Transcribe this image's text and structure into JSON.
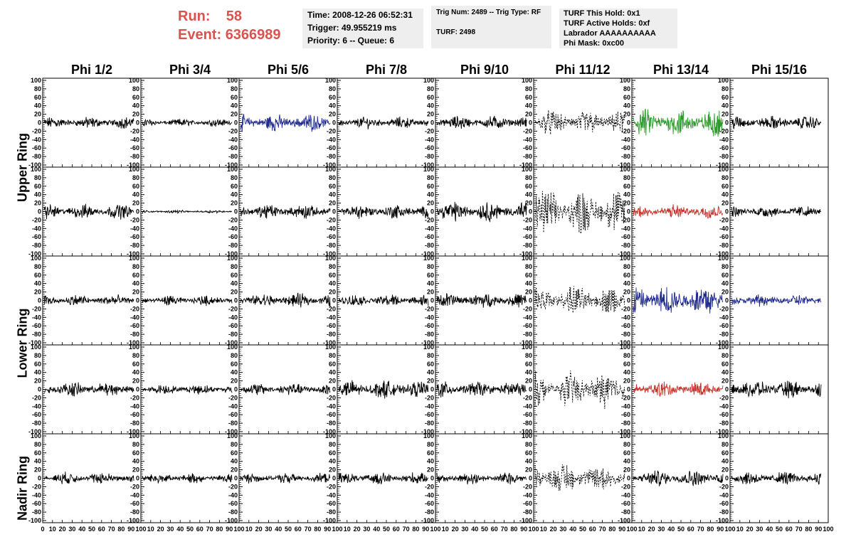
{
  "header": {
    "run_label": "Run:",
    "run_value": "58",
    "event_label": "Event:",
    "event_value": "6366989",
    "time": "Time: 2008-12-26 06:52:31",
    "trigger": "Trigger: 49.955219 ms",
    "priority": "Priority: 6 -- Queue: 6",
    "trig_num": "Trig Num: 2489 -- Trig Type: RF",
    "turf": "TURF: 2498",
    "turf_this_hold": "TURF This Hold: 0x1",
    "turf_active_holds": "TURF Active Holds: 0xf",
    "labrador": "Labrador AAAAAAAAAA",
    "phi_mask": "Phi Mask: 0xc00"
  },
  "ring_labels": {
    "upper": "Upper Ring",
    "lower": "Lower Ring",
    "nadir": "Nadir Ring"
  },
  "colors": {
    "black": "#000000",
    "blue": "#1f2a8c",
    "green": "#2a9a2a",
    "red": "#c8322c",
    "header_red": "#d9534f",
    "info_bg": "#eeeeee"
  },
  "chart_data": {
    "type": "line",
    "columns": [
      "Phi 1/2",
      "Phi 3/4",
      "Phi 5/6",
      "Phi 7/8",
      "Phi 9/10",
      "Phi 11/12",
      "Phi 13/14",
      "Phi 15/16"
    ],
    "y_ticks": [
      "100",
      "80",
      "60",
      "40",
      "20",
      "0",
      "-20",
      "-40",
      "-60",
      "-80",
      "-100"
    ],
    "x_ticks": [
      "0",
      "10",
      "20",
      "30",
      "40",
      "50",
      "60",
      "70",
      "80",
      "90",
      "100"
    ],
    "ylim": [
      -100,
      100
    ],
    "xlim": [
      0,
      100
    ],
    "rows": [
      {
        "cells": [
          {
            "color": "black",
            "amp": 12,
            "style": "solid"
          },
          {
            "color": "black",
            "amp": 8,
            "style": "solid"
          },
          {
            "color": "blue",
            "amp": 18,
            "style": "solid"
          },
          {
            "color": "black",
            "amp": 12,
            "style": "solid"
          },
          {
            "color": "black",
            "amp": 14,
            "style": "solid"
          },
          {
            "color": "black",
            "amp": 25,
            "style": "dashed"
          },
          {
            "color": "green",
            "amp": 28,
            "style": "solid"
          },
          {
            "color": "black",
            "amp": 14,
            "style": "solid"
          }
        ]
      },
      {
        "cells": [
          {
            "color": "black",
            "amp": 15,
            "style": "solid"
          },
          {
            "color": "black",
            "amp": 3,
            "style": "solid"
          },
          {
            "color": "black",
            "amp": 15,
            "style": "solid"
          },
          {
            "color": "black",
            "amp": 15,
            "style": "solid"
          },
          {
            "color": "black",
            "amp": 20,
            "style": "solid"
          },
          {
            "color": "black",
            "amp": 45,
            "style": "dashed"
          },
          {
            "color": "red",
            "amp": 15,
            "style": "solid"
          },
          {
            "color": "black",
            "amp": 12,
            "style": "solid"
          }
        ]
      },
      {
        "cells": [
          {
            "color": "black",
            "amp": 12,
            "style": "solid"
          },
          {
            "color": "black",
            "amp": 10,
            "style": "solid"
          },
          {
            "color": "black",
            "amp": 14,
            "style": "solid"
          },
          {
            "color": "black",
            "amp": 12,
            "style": "solid"
          },
          {
            "color": "black",
            "amp": 15,
            "style": "solid"
          },
          {
            "color": "black",
            "amp": 30,
            "style": "dashed"
          },
          {
            "color": "blue",
            "amp": 32,
            "style": "solid"
          },
          {
            "color": "blue",
            "amp": 12,
            "style": "solid"
          }
        ]
      },
      {
        "cells": [
          {
            "color": "black",
            "amp": 15,
            "style": "solid"
          },
          {
            "color": "black",
            "amp": 10,
            "style": "solid"
          },
          {
            "color": "black",
            "amp": 12,
            "style": "solid"
          },
          {
            "color": "black",
            "amp": 18,
            "style": "solid"
          },
          {
            "color": "black",
            "amp": 16,
            "style": "solid"
          },
          {
            "color": "black",
            "amp": 35,
            "style": "dashed"
          },
          {
            "color": "red",
            "amp": 16,
            "style": "solid"
          },
          {
            "color": "black",
            "amp": 18,
            "style": "solid"
          }
        ]
      },
      {
        "cells": [
          {
            "color": "black",
            "amp": 12,
            "style": "solid"
          },
          {
            "color": "black",
            "amp": 10,
            "style": "solid"
          },
          {
            "color": "black",
            "amp": 10,
            "style": "solid"
          },
          {
            "color": "black",
            "amp": 12,
            "style": "solid"
          },
          {
            "color": "black",
            "amp": 12,
            "style": "solid"
          },
          {
            "color": "black",
            "amp": 30,
            "style": "dashed"
          },
          {
            "color": "black",
            "amp": 16,
            "style": "solid"
          },
          {
            "color": "black",
            "amp": 14,
            "style": "solid"
          }
        ]
      }
    ]
  }
}
